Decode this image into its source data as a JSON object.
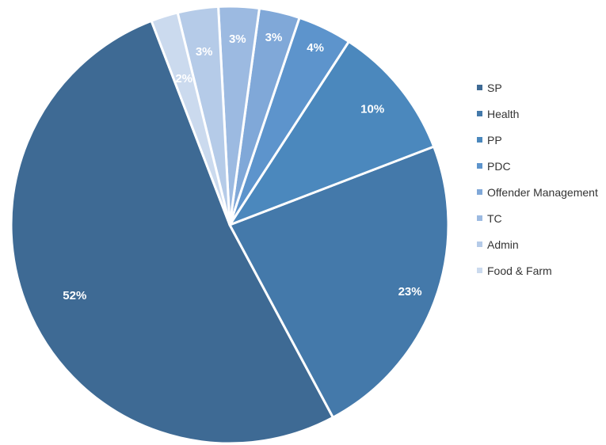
{
  "chart_data": {
    "type": "pie",
    "categories": [
      "SP",
      "Health",
      "PP",
      "PDC",
      "Offender Management",
      "TC",
      "Admin",
      "Food & Farm"
    ],
    "values": [
      52,
      23,
      10,
      4,
      3,
      3,
      3,
      2
    ],
    "data_labels": [
      "52%",
      "23%",
      "10%",
      "4%",
      "3%",
      "3%",
      "3%",
      "2%"
    ],
    "colors": [
      "#3e6a94",
      "#4479aa",
      "#4b88bd",
      "#5d94cc",
      "#80a8d8",
      "#9cbae1",
      "#b5cbe8",
      "#cbdaee"
    ],
    "legend_position": "right"
  }
}
